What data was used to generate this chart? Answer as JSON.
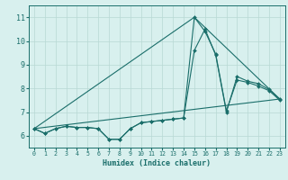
{
  "xlabel": "Humidex (Indice chaleur)",
  "xlim": [
    -0.5,
    23.5
  ],
  "ylim": [
    5.5,
    11.5
  ],
  "yticks": [
    6,
    7,
    8,
    9,
    10,
    11
  ],
  "xticks": [
    0,
    1,
    2,
    3,
    4,
    5,
    6,
    7,
    8,
    9,
    10,
    11,
    12,
    13,
    14,
    15,
    16,
    17,
    18,
    19,
    20,
    21,
    22,
    23
  ],
  "bg_color": "#d8f0ee",
  "line_color": "#1a6e6a",
  "grid_color": "#b8d8d4",
  "series": [
    {
      "x": [
        0,
        1,
        2,
        3,
        4,
        5,
        6,
        7,
        8,
        9,
        10,
        11,
        12,
        13,
        14,
        15,
        16,
        17,
        18,
        19,
        20,
        21,
        22,
        23
      ],
      "y": [
        6.3,
        6.1,
        6.3,
        6.4,
        6.35,
        6.35,
        6.3,
        5.85,
        5.85,
        6.3,
        6.55,
        6.6,
        6.65,
        6.7,
        6.75,
        11.0,
        10.4,
        9.45,
        7.05,
        8.35,
        8.25,
        8.1,
        7.9,
        7.5
      ],
      "marker": true
    },
    {
      "x": [
        0,
        1,
        2,
        3,
        4,
        5,
        6,
        7,
        8,
        9,
        10,
        11,
        12,
        13,
        14,
        15,
        16,
        17,
        18,
        19,
        20,
        21,
        22,
        23
      ],
      "y": [
        6.3,
        6.1,
        6.3,
        6.4,
        6.35,
        6.35,
        6.3,
        5.85,
        5.85,
        6.3,
        6.55,
        6.6,
        6.65,
        6.7,
        6.75,
        9.6,
        10.5,
        9.4,
        7.0,
        8.5,
        8.3,
        8.2,
        7.95,
        7.55
      ],
      "marker": true
    },
    {
      "x": [
        0,
        23
      ],
      "y": [
        6.3,
        7.55
      ],
      "marker": false
    },
    {
      "x": [
        0,
        15,
        23
      ],
      "y": [
        6.3,
        11.0,
        7.55
      ],
      "marker": false
    }
  ]
}
